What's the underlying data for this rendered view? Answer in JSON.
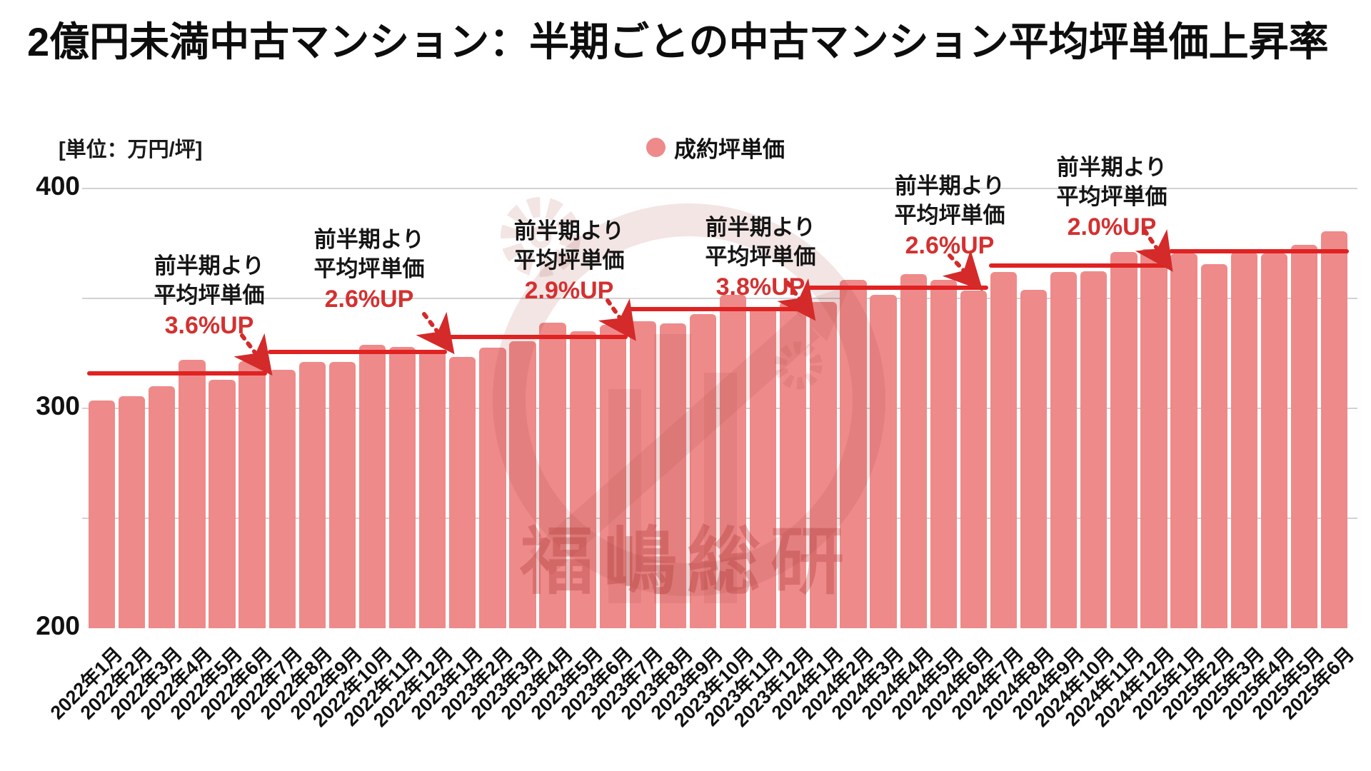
{
  "title": "2億円未満中古マンション：半期ごとの中古マンション平均坪単価上昇率",
  "unit_label": "[単位：万円/坪]",
  "legend": {
    "label": "成約坪単価"
  },
  "watermark": {
    "text": "福嶋総研"
  },
  "colors": {
    "bar": "#ee8a8a",
    "avg_line": "#e02222",
    "annotation_red": "#d43030",
    "arrow": "#d42a2a",
    "grid": "#d2d2d2",
    "text": "#111111"
  },
  "y_axis": {
    "min": 200,
    "max": 400,
    "ticks": [
      {
        "value": 400,
        "label": "400"
      },
      {
        "value": 300,
        "label": "300"
      },
      {
        "value": 200,
        "label": "200"
      }
    ],
    "gridline_values": [
      400,
      350,
      300,
      250
    ]
  },
  "annotations": [
    {
      "line1": "前半期より",
      "line2": "平均坪単価",
      "pct": "3.6%UP"
    },
    {
      "line1": "前半期より",
      "line2": "平均坪単価",
      "pct": "2.6%UP"
    },
    {
      "line1": "前半期より",
      "line2": "平均坪単価",
      "pct": "2.9%UP"
    },
    {
      "line1": "前半期より",
      "line2": "平均坪単価",
      "pct": "3.8%UP"
    },
    {
      "line1": "前半期より",
      "line2": "平均坪単価",
      "pct": "2.6%UP"
    },
    {
      "line1": "前半期より",
      "line2": "平均坪単価",
      "pct": "2.0%UP"
    }
  ],
  "chart_data": {
    "type": "bar",
    "title": "2億円未満中古マンション：半期ごとの中古マンション平均坪単価上昇率",
    "xlabel": "",
    "ylabel": "万円/坪",
    "ylim": [
      200,
      400
    ],
    "grid": true,
    "legend_position": "top-center",
    "series_name": "成約坪単価",
    "categories": [
      "2022年1月",
      "2022年2月",
      "2022年3月",
      "2022年4月",
      "2022年5月",
      "2022年6月",
      "2022年7月",
      "2022年8月",
      "2022年9月",
      "2022年10月",
      "2022年11月",
      "2022年12月",
      "2023年1月",
      "2023年2月",
      "2023年3月",
      "2023年4月",
      "2023年5月",
      "2023年6月",
      "2023年7月",
      "2023年8月",
      "2023年9月",
      "2023年10月",
      "2023年11月",
      "2023年12月",
      "2024年1月",
      "2024年2月",
      "2024年3月",
      "2024年4月",
      "2024年5月",
      "2024年6月",
      "2024年7月",
      "2024年8月",
      "2024年9月",
      "2024年10月",
      "2024年11月",
      "2024年12月",
      "2025年1月",
      "2025年2月",
      "2025年3月",
      "2025年4月",
      "2025年5月",
      "2025年6月"
    ],
    "values": [
      303.5,
      305.5,
      310,
      322,
      313,
      321.5,
      317.5,
      321,
      321,
      329,
      328,
      326,
      323.5,
      327.5,
      330.5,
      339,
      335,
      338,
      339.5,
      338.5,
      343,
      351.5,
      346,
      348.5,
      348.5,
      358.5,
      351.5,
      361,
      358.5,
      353.5,
      362,
      354,
      362,
      362.5,
      371,
      372.5,
      370.5,
      365.5,
      371,
      370.5,
      374.5,
      380.5
    ],
    "half_year_avg_lines": [
      {
        "period": "2022年上半期",
        "value": 316,
        "bar_span": [
          0,
          5
        ]
      },
      {
        "period": "2022年下半期",
        "value": 325.5,
        "bar_span": [
          6,
          11
        ]
      },
      {
        "period": "2023年上半期",
        "value": 332.5,
        "bar_span": [
          12,
          17
        ]
      },
      {
        "period": "2023年下半期",
        "value": 345,
        "bar_span": [
          18,
          23
        ]
      },
      {
        "period": "2024年上半期",
        "value": 355,
        "bar_span": [
          24,
          29
        ]
      },
      {
        "period": "2024年下半期",
        "value": 365,
        "bar_span": [
          30,
          35
        ]
      },
      {
        "period": "2025年上半期",
        "value": 371.5,
        "bar_span": [
          36,
          41
        ]
      }
    ],
    "pct_changes_vs_previous_half": [
      "3.6%UP",
      "2.6%UP",
      "2.9%UP",
      "3.8%UP",
      "2.6%UP",
      "2.0%UP"
    ]
  }
}
